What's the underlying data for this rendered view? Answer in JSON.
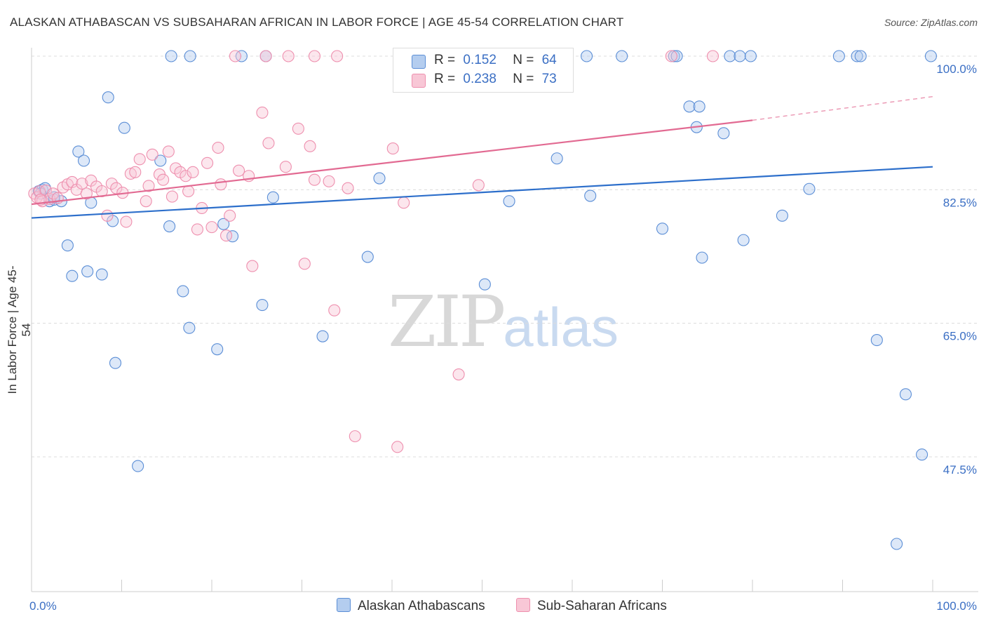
{
  "title": "ALASKAN ATHABASCAN VS SUBSAHARAN AFRICAN IN LABOR FORCE | AGE 45-54 CORRELATION CHART",
  "source": "Source: ZipAtlas.com",
  "watermark": {
    "zip": "ZIP",
    "atlas": "atlas"
  },
  "legend_stats": [
    {
      "r_label": "R =",
      "r_value": "0.152",
      "n_label": "N =",
      "n_value": "64",
      "color": "#a9c4ec"
    },
    {
      "r_label": "R =",
      "r_value": "0.238",
      "n_label": "N =",
      "n_value": "73",
      "color": "#f5b8cb"
    }
  ],
  "chart_data": {
    "type": "scatter",
    "title": "ALASKAN ATHABASCAN VS SUBSAHARAN AFRICAN IN LABOR FORCE | AGE 45-54 CORRELATION CHART",
    "xlabel": "",
    "ylabel": "In Labor Force | Age 45-54",
    "xlim": [
      0,
      100
    ],
    "ylim": [
      32,
      102
    ],
    "x_tick_labels": [
      "0.0%",
      "100.0%"
    ],
    "y_ticks": [
      100.0,
      82.5,
      65.0,
      47.5
    ],
    "y_tick_labels": [
      "100.0%",
      "82.5%",
      "65.0%",
      "47.5%"
    ],
    "grid": true,
    "legend_position": "bottom",
    "series": [
      {
        "name": "Alaskan Athabascans",
        "color": "#5b8ed6",
        "fill": "#b4cdef",
        "trend": {
          "x": [
            0,
            100
          ],
          "y": [
            78.8,
            85.5
          ],
          "color": "#2d6fcb"
        },
        "points": [
          [
            0.8,
            82.3
          ],
          [
            1.2,
            82.5
          ],
          [
            1.5,
            82.7
          ],
          [
            2.0,
            81.0
          ],
          [
            2.5,
            81.2
          ],
          [
            3.3,
            81.0
          ],
          [
            4.0,
            75.2
          ],
          [
            4.5,
            71.2
          ],
          [
            5.2,
            87.5
          ],
          [
            5.8,
            86.3
          ],
          [
            6.2,
            71.8
          ],
          [
            6.6,
            80.8
          ],
          [
            7.8,
            71.4
          ],
          [
            8.5,
            94.6
          ],
          [
            9.0,
            78.4
          ],
          [
            9.3,
            59.8
          ],
          [
            10.3,
            90.6
          ],
          [
            11.8,
            46.3
          ],
          [
            14.3,
            86.3
          ],
          [
            15.3,
            77.7
          ],
          [
            15.5,
            100.0
          ],
          [
            16.8,
            69.2
          ],
          [
            17.5,
            64.4
          ],
          [
            17.6,
            100.0
          ],
          [
            20.6,
            61.6
          ],
          [
            21.3,
            78.0
          ],
          [
            22.3,
            76.4
          ],
          [
            23.3,
            100.0
          ],
          [
            25.6,
            67.4
          ],
          [
            26.0,
            100.0
          ],
          [
            26.8,
            81.5
          ],
          [
            32.3,
            63.3
          ],
          [
            37.3,
            73.7
          ],
          [
            38.6,
            84.0
          ],
          [
            50.3,
            70.1
          ],
          [
            53.0,
            81.0
          ],
          [
            58.3,
            86.6
          ],
          [
            61.6,
            100.0
          ],
          [
            62.0,
            81.7
          ],
          [
            65.5,
            100.0
          ],
          [
            70.0,
            77.4
          ],
          [
            71.3,
            100.0
          ],
          [
            71.6,
            100.0
          ],
          [
            73.0,
            93.4
          ],
          [
            73.8,
            90.7
          ],
          [
            74.1,
            93.4
          ],
          [
            74.4,
            73.6
          ],
          [
            76.8,
            89.9
          ],
          [
            77.5,
            100.0
          ],
          [
            78.6,
            100.0
          ],
          [
            79.0,
            75.9
          ],
          [
            79.8,
            100.0
          ],
          [
            83.3,
            79.1
          ],
          [
            86.3,
            82.6
          ],
          [
            89.6,
            100.0
          ],
          [
            91.6,
            100.0
          ],
          [
            92.0,
            100.0
          ],
          [
            93.8,
            62.8
          ],
          [
            97.0,
            55.7
          ],
          [
            96.0,
            36.1
          ],
          [
            98.8,
            47.8
          ],
          [
            99.8,
            100.0
          ],
          [
            2.5,
            81.5
          ],
          [
            1.0,
            82.0
          ]
        ]
      },
      {
        "name": "Sub-Saharan Africans",
        "color": "#ee8fae",
        "fill": "#f8c7d6",
        "trend": {
          "x": [
            0,
            80
          ],
          "y": [
            80.6,
            91.6
          ],
          "dashed_to": [
            100,
            94.7
          ],
          "color": "#e26a92"
        },
        "points": [
          [
            0.3,
            82.0
          ],
          [
            0.6,
            81.5
          ],
          [
            0.9,
            82.3
          ],
          [
            1.2,
            81.0
          ],
          [
            1.6,
            82.4
          ],
          [
            2.0,
            81.3
          ],
          [
            2.4,
            82.0
          ],
          [
            2.9,
            81.4
          ],
          [
            3.5,
            82.8
          ],
          [
            4.0,
            83.2
          ],
          [
            4.5,
            83.5
          ],
          [
            5.0,
            82.5
          ],
          [
            5.6,
            83.3
          ],
          [
            6.1,
            82.0
          ],
          [
            6.6,
            83.7
          ],
          [
            7.2,
            82.9
          ],
          [
            7.8,
            82.3
          ],
          [
            8.4,
            79.1
          ],
          [
            8.9,
            83.3
          ],
          [
            9.4,
            82.7
          ],
          [
            10.1,
            82.1
          ],
          [
            10.5,
            78.3
          ],
          [
            11.0,
            84.6
          ],
          [
            11.5,
            84.8
          ],
          [
            12.0,
            86.5
          ],
          [
            12.7,
            81.0
          ],
          [
            13.0,
            83.0
          ],
          [
            13.4,
            87.1
          ],
          [
            14.2,
            84.5
          ],
          [
            14.6,
            83.8
          ],
          [
            15.2,
            87.5
          ],
          [
            15.6,
            81.6
          ],
          [
            16.0,
            85.3
          ],
          [
            16.5,
            84.8
          ],
          [
            17.1,
            84.3
          ],
          [
            17.4,
            82.3
          ],
          [
            17.9,
            84.8
          ],
          [
            18.4,
            77.3
          ],
          [
            18.9,
            80.1
          ],
          [
            19.5,
            86.0
          ],
          [
            20.0,
            77.6
          ],
          [
            20.7,
            88.0
          ],
          [
            21.0,
            83.2
          ],
          [
            21.6,
            76.5
          ],
          [
            22.0,
            79.1
          ],
          [
            22.6,
            100.0
          ],
          [
            23.0,
            85.0
          ],
          [
            24.1,
            84.3
          ],
          [
            24.5,
            72.5
          ],
          [
            25.6,
            92.6
          ],
          [
            26.0,
            100.0
          ],
          [
            26.3,
            88.6
          ],
          [
            28.2,
            85.5
          ],
          [
            28.5,
            100.0
          ],
          [
            29.6,
            90.5
          ],
          [
            30.3,
            72.8
          ],
          [
            30.9,
            88.2
          ],
          [
            31.4,
            83.8
          ],
          [
            33.0,
            83.6
          ],
          [
            33.6,
            66.7
          ],
          [
            33.9,
            100.0
          ],
          [
            35.1,
            82.7
          ],
          [
            35.9,
            50.2
          ],
          [
            40.1,
            87.9
          ],
          [
            40.6,
            48.8
          ],
          [
            41.3,
            80.8
          ],
          [
            47.4,
            58.3
          ],
          [
            49.6,
            83.1
          ],
          [
            54.4,
            100.0
          ],
          [
            71.0,
            100.0
          ],
          [
            75.6,
            100.0
          ],
          [
            31.4,
            100.0
          ],
          [
            1.0,
            81.2
          ]
        ]
      }
    ]
  }
}
